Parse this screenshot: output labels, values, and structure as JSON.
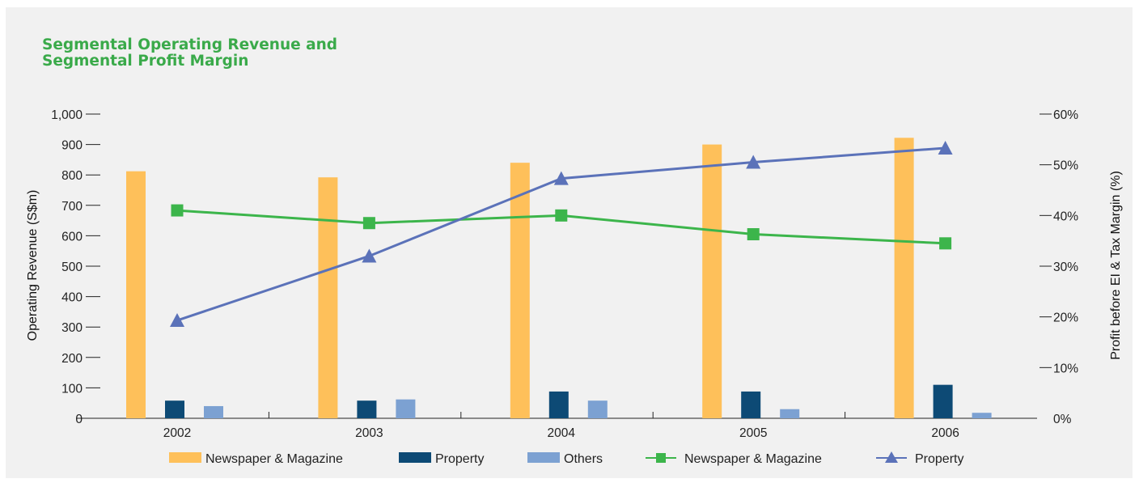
{
  "chart_data": {
    "type": "bar",
    "title_lines": [
      "Segmental Operating Revenue and",
      "Segmental Profit Margin"
    ],
    "categories": [
      "2002",
      "2003",
      "2004",
      "2005",
      "2006"
    ],
    "ylabel": "Operating Revenue (S$m)",
    "y2label": "Profit before EI & Tax Margin (%)",
    "ylim": [
      0,
      1000
    ],
    "y2lim": [
      0,
      60
    ],
    "yticks": [
      "0",
      "100",
      "200",
      "300",
      "400",
      "500",
      "600",
      "700",
      "800",
      "900",
      "1,000"
    ],
    "y2ticks": [
      "0%",
      "10%",
      "20%",
      "30%",
      "40%",
      "50%",
      "60%"
    ],
    "grid": false,
    "legend_position": "bottom",
    "bar_series": [
      {
        "name": "Newspaper & Magazine",
        "color": "#fec05a",
        "values": [
          812,
          792,
          840,
          900,
          922
        ]
      },
      {
        "name": "Property",
        "color": "#0d4a75",
        "values": [
          58,
          58,
          88,
          88,
          110
        ]
      },
      {
        "name": "Others",
        "color": "#7ca1d2",
        "values": [
          40,
          62,
          58,
          30,
          18
        ]
      }
    ],
    "line_series": [
      {
        "name": "Newspaper & Magazine",
        "color": "#3cb54b",
        "marker": "square",
        "values": [
          41,
          38.5,
          40,
          36.3,
          34.5
        ]
      },
      {
        "name": "Property",
        "color": "#5b72b9",
        "marker": "triangle",
        "values": [
          19.3,
          32,
          47.3,
          50.5,
          53.3
        ]
      }
    ]
  }
}
